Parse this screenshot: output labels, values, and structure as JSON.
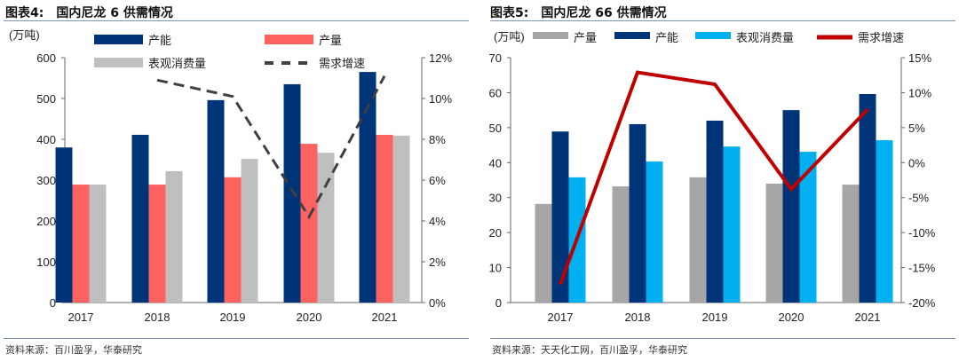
{
  "chart_data": [
    {
      "type": "bar",
      "title": "图表4:　国内尼龙 6 供需情况",
      "ylabel": "(万吨)",
      "categories": [
        "2017",
        "2018",
        "2019",
        "2020",
        "2021"
      ],
      "ylim": [
        0,
        600
      ],
      "yticks": [
        0,
        100,
        200,
        300,
        400,
        500,
        600
      ],
      "y2lim": [
        0,
        12
      ],
      "y2ticks": [
        "0%",
        "2%",
        "4%",
        "6%",
        "8%",
        "10%",
        "12%"
      ],
      "legend_placement": "top",
      "series": [
        {
          "name": "产能",
          "type": "bar",
          "axis": "left",
          "color": "#003478",
          "values": [
            380,
            411,
            496,
            535,
            565
          ]
        },
        {
          "name": "产量",
          "type": "bar",
          "axis": "left",
          "color": "#ff6361",
          "values": [
            289,
            289,
            307,
            389,
            411
          ]
        },
        {
          "name": "表观消费量",
          "type": "bar",
          "axis": "left",
          "color": "#bfbfbf",
          "values": [
            289,
            322,
            352,
            367,
            409
          ]
        },
        {
          "name": "需求增速",
          "type": "line",
          "style": "dashed",
          "axis": "right",
          "color": "#404040",
          "values": [
            null,
            10.9,
            10.1,
            4.2,
            11.1
          ]
        }
      ],
      "source": "资料来源：百川盈孚，华泰研究"
    },
    {
      "type": "bar",
      "title": "图表5:　国内尼龙 66 供需情况",
      "ylabel": "(万吨)",
      "categories": [
        "2017",
        "2018",
        "2019",
        "2020",
        "2021"
      ],
      "ylim": [
        0,
        70
      ],
      "yticks": [
        0,
        10,
        20,
        30,
        40,
        50,
        60,
        70
      ],
      "y2lim": [
        -20,
        15
      ],
      "y2ticks": [
        "-20%",
        "-15%",
        "-10%",
        "-5%",
        "0%",
        "5%",
        "10%",
        "15%"
      ],
      "legend_placement": "top",
      "series": [
        {
          "name": "产量",
          "type": "bar",
          "axis": "left",
          "color": "#a6a6a6",
          "values": [
            28.2,
            33.2,
            35.8,
            34.0,
            33.7
          ]
        },
        {
          "name": "产能",
          "type": "bar",
          "axis": "left",
          "color": "#003478",
          "values": [
            48.9,
            51.0,
            52.0,
            55.0,
            59.6
          ]
        },
        {
          "name": "表观消费量",
          "type": "bar",
          "axis": "left",
          "color": "#00b0f0",
          "values": [
            35.8,
            40.3,
            44.6,
            43.1,
            46.4
          ]
        },
        {
          "name": "需求增速",
          "type": "line",
          "style": "solid",
          "axis": "right",
          "color": "#c00000",
          "values": [
            -17.4,
            12.9,
            11.2,
            -3.8,
            7.6
          ]
        }
      ],
      "source": "资料来源：天天化工网，百川盈孚，华泰研究"
    }
  ]
}
